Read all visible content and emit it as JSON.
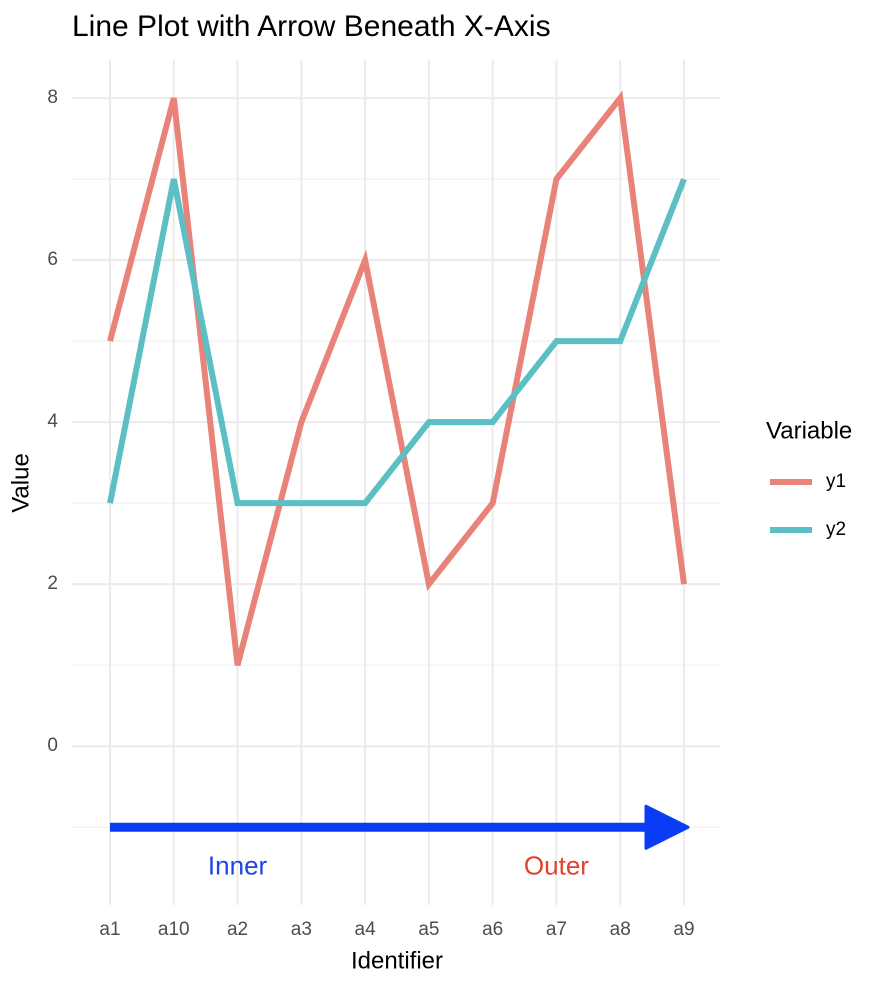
{
  "chart_data": {
    "type": "line",
    "title": "Line Plot with Arrow Beneath X-Axis",
    "xlabel": "Identifier",
    "ylabel": "Value",
    "categories": [
      "a1",
      "a10",
      "a2",
      "a3",
      "a4",
      "a5",
      "a6",
      "a7",
      "a8",
      "a9"
    ],
    "series": [
      {
        "name": "y1",
        "color": "#e9837a",
        "values": [
          5,
          8,
          1,
          4,
          6,
          2,
          3,
          7,
          8,
          2
        ]
      },
      {
        "name": "y2",
        "color": "#5bbfc4",
        "values": [
          3,
          7,
          3,
          3,
          3,
          4,
          4,
          5,
          5,
          7
        ]
      }
    ],
    "ylim": [
      -1.96,
      8.47
    ],
    "yticks": [
      0,
      2,
      4,
      6,
      8
    ],
    "minor_yticks": [
      -1,
      1,
      3,
      5,
      7
    ],
    "grid": true,
    "legend_title": "Variable",
    "legend": "right",
    "arrow": {
      "y": -1,
      "from": "a1",
      "to": "a9",
      "color": "#0a3cf5"
    },
    "annotations": [
      {
        "text": "Inner",
        "x": "a2",
        "y": -1.5,
        "color": "#1f44e6"
      },
      {
        "text": "Outer",
        "x": "a7",
        "y": -1.5,
        "color": "#e4412d"
      }
    ]
  }
}
